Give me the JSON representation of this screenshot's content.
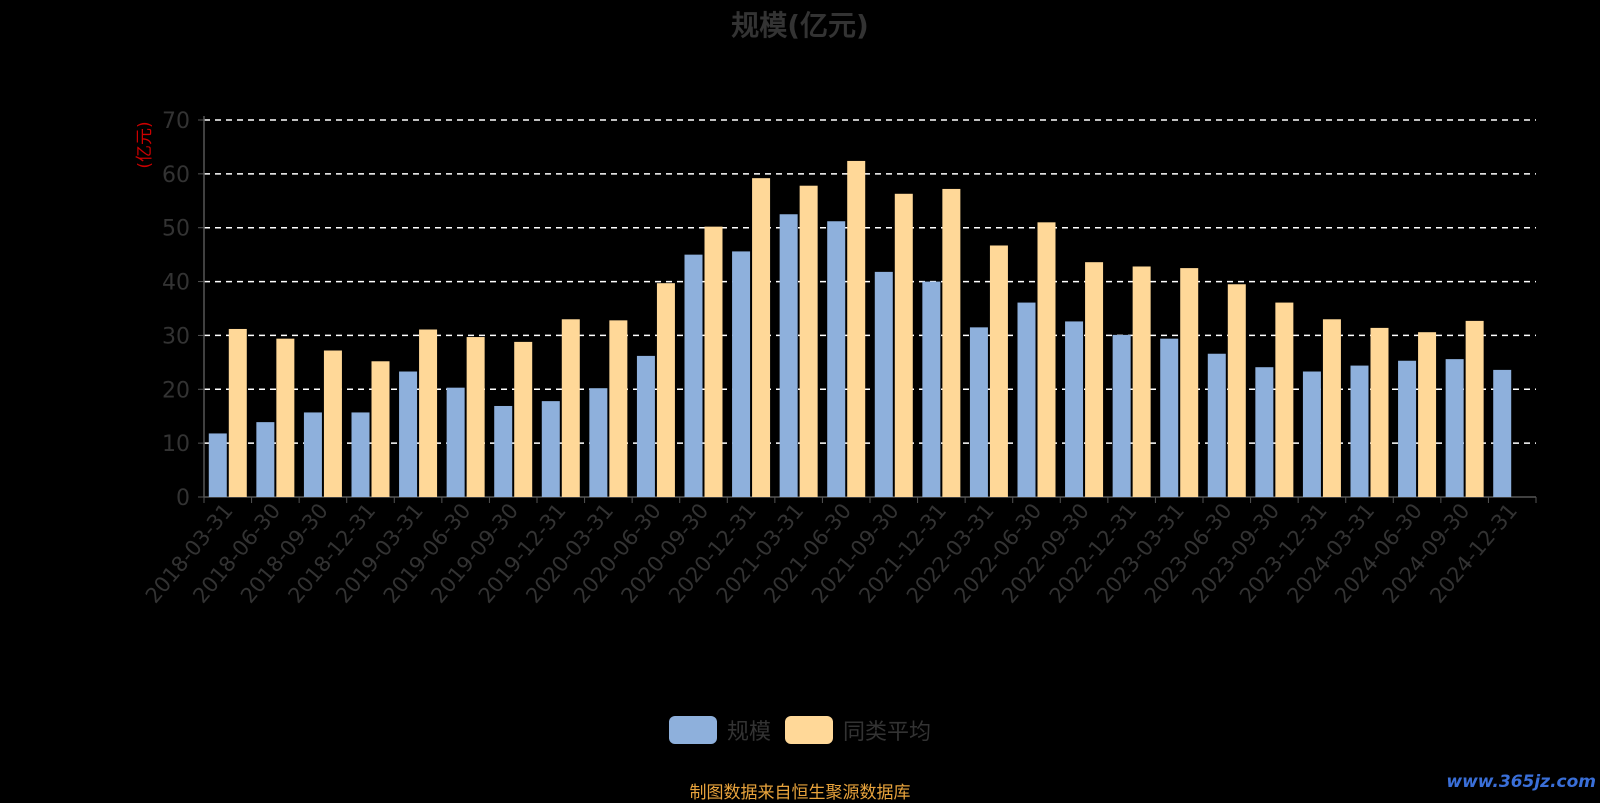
{
  "chart_data": {
    "type": "bar",
    "title": "规模(亿元)",
    "ylabel": "(亿元)",
    "ylim": [
      0,
      70
    ],
    "yticks": [
      0,
      10,
      20,
      30,
      40,
      50,
      60,
      70
    ],
    "grid": true,
    "legend_position": "bottom-center",
    "categories": [
      "2018-03-31",
      "2018-06-30",
      "2018-09-30",
      "2018-12-31",
      "2019-03-31",
      "2019-06-30",
      "2019-09-30",
      "2019-12-31",
      "2020-03-31",
      "2020-06-30",
      "2020-09-30",
      "2020-12-31",
      "2021-03-31",
      "2021-06-30",
      "2021-09-30",
      "2021-12-31",
      "2022-03-31",
      "2022-06-30",
      "2022-09-30",
      "2022-12-31",
      "2023-03-31",
      "2023-06-30",
      "2023-09-30",
      "2023-12-31",
      "2024-03-31",
      "2024-06-30",
      "2024-09-30",
      "2024-12-31"
    ],
    "series": [
      {
        "name": "规模",
        "color": "#8eb0dc",
        "values": [
          11.8,
          13.9,
          15.7,
          15.7,
          23.3,
          20.3,
          16.9,
          17.8,
          20.2,
          26.2,
          45.0,
          45.6,
          52.5,
          51.2,
          41.8,
          40.0,
          31.5,
          36.1,
          32.6,
          30.1,
          29.4,
          26.6,
          24.1,
          23.3,
          24.4,
          25.3,
          25.6,
          23.6
        ]
      },
      {
        "name": "同类平均",
        "color": "#ffd898",
        "values": [
          31.2,
          29.4,
          27.2,
          25.2,
          31.1,
          29.7,
          28.8,
          33.0,
          32.8,
          39.7,
          50.2,
          59.2,
          57.8,
          62.4,
          56.3,
          57.2,
          46.7,
          51.0,
          43.6,
          42.8,
          42.5,
          39.5,
          36.1,
          33.0,
          31.4,
          30.6,
          32.7,
          null
        ]
      }
    ]
  },
  "source_note": "制图数据来自恒生聚源数据库",
  "watermark": "www.365jz.com"
}
